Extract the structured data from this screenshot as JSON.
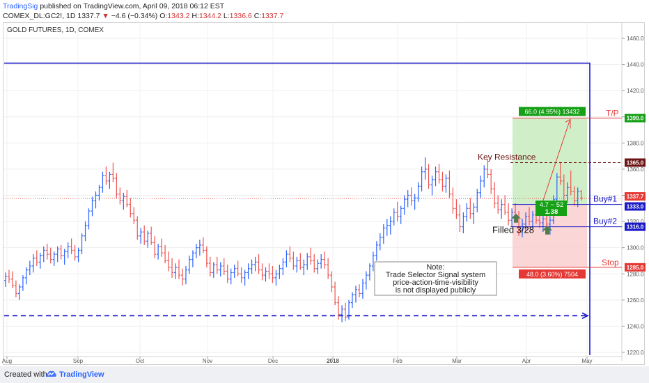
{
  "header": {
    "author": "TradingSig",
    "published_text": "published on TradingView.com, April 09, 2018 06:12 EST",
    "symbol": "COMEX_DL:GC2!, 1D",
    "last_price": "1337.7",
    "change_arrow": "▼",
    "change_text": "−4.6 (−0.34%)",
    "o_label": "O:",
    "o_value": "1343.2",
    "h_label": "H:",
    "h_value": "1344.2",
    "l_label": "L:",
    "l_value": "1336.6",
    "c_label": "C:",
    "c_value": "1337.7"
  },
  "footer": {
    "created_with": "Created with",
    "brand": "TradingView"
  },
  "colors": {
    "up_bar": "#2962ff",
    "down_bar": "#ef5350",
    "navy": "#1a1ac8",
    "green_zone": "#c8ecc0",
    "red_zone": "#f9cfcf",
    "green_label": "#16a016",
    "red_label": "#e53935",
    "dark_red": "#6d1414",
    "price_line": "#e53935"
  },
  "chart_data": {
    "type": "ohlc",
    "title": "GOLD FUTURES, 1D, COMEX",
    "ylim": [
      1216,
      1470
    ],
    "y_ticks": [
      "1220.0",
      "1240.0",
      "1260.0",
      "1280.0",
      "1300.0",
      "1320.0",
      "1340.0",
      "1360.0",
      "1380.0",
      "1400.0",
      "1420.0",
      "1440.0",
      "1460.0"
    ],
    "x_ticks": [
      "Aug",
      "Sep",
      "Oct",
      "Nov",
      "Dec",
      "2018",
      "Feb",
      "Mar",
      "Apr",
      "May"
    ],
    "series": [
      {
        "values": [
          [
            1275,
            1281,
            1270,
            1278
          ],
          [
            1278,
            1283,
            1273,
            1276
          ],
          [
            1276,
            1282,
            1269,
            1271
          ],
          [
            1271,
            1275,
            1262,
            1265
          ],
          [
            1265,
            1272,
            1260,
            1270
          ],
          [
            1270,
            1279,
            1267,
            1277
          ],
          [
            1277,
            1285,
            1272,
            1283
          ],
          [
            1283,
            1290,
            1279,
            1286
          ],
          [
            1286,
            1295,
            1281,
            1292
          ],
          [
            1292,
            1298,
            1286,
            1289
          ],
          [
            1289,
            1296,
            1284,
            1294
          ],
          [
            1294,
            1301,
            1289,
            1298
          ],
          [
            1298,
            1303,
            1291,
            1295
          ],
          [
            1295,
            1300,
            1288,
            1291
          ],
          [
            1291,
            1297,
            1286,
            1295
          ],
          [
            1295,
            1301,
            1289,
            1299
          ],
          [
            1299,
            1302,
            1291,
            1294
          ],
          [
            1294,
            1299,
            1287,
            1297
          ],
          [
            1297,
            1304,
            1292,
            1301
          ],
          [
            1301,
            1307,
            1295,
            1298
          ],
          [
            1298,
            1302,
            1290,
            1293
          ],
          [
            1293,
            1300,
            1289,
            1298
          ],
          [
            1298,
            1311,
            1295,
            1309
          ],
          [
            1309,
            1320,
            1305,
            1317
          ],
          [
            1317,
            1330,
            1314,
            1328
          ],
          [
            1328,
            1339,
            1324,
            1336
          ],
          [
            1336,
            1343,
            1330,
            1340
          ],
          [
            1340,
            1348,
            1336,
            1346
          ],
          [
            1346,
            1358,
            1342,
            1355
          ],
          [
            1355,
            1362,
            1348,
            1351
          ],
          [
            1351,
            1358,
            1345,
            1356
          ],
          [
            1356,
            1365,
            1350,
            1353
          ],
          [
            1353,
            1357,
            1338,
            1341
          ],
          [
            1341,
            1346,
            1333,
            1336
          ],
          [
            1336,
            1342,
            1329,
            1339
          ],
          [
            1339,
            1344,
            1331,
            1333
          ],
          [
            1333,
            1338,
            1323,
            1326
          ],
          [
            1326,
            1331,
            1318,
            1321
          ],
          [
            1321,
            1324,
            1306,
            1309
          ],
          [
            1309,
            1315,
            1303,
            1312
          ],
          [
            1312,
            1317,
            1302,
            1305
          ],
          [
            1305,
            1313,
            1300,
            1311
          ],
          [
            1311,
            1316,
            1302,
            1304
          ],
          [
            1304,
            1309,
            1292,
            1295
          ],
          [
            1295,
            1303,
            1291,
            1301
          ],
          [
            1301,
            1307,
            1293,
            1296
          ],
          [
            1296,
            1302,
            1288,
            1290
          ],
          [
            1290,
            1297,
            1282,
            1285
          ],
          [
            1285,
            1292,
            1277,
            1281
          ],
          [
            1281,
            1288,
            1276,
            1285
          ],
          [
            1285,
            1291,
            1276,
            1279
          ],
          [
            1279,
            1284,
            1271,
            1276
          ],
          [
            1276,
            1286,
            1272,
            1283
          ],
          [
            1283,
            1294,
            1280,
            1291
          ],
          [
            1291,
            1298,
            1285,
            1296
          ],
          [
            1296,
            1303,
            1292,
            1300
          ],
          [
            1300,
            1306,
            1294,
            1302
          ],
          [
            1302,
            1308,
            1296,
            1298
          ],
          [
            1298,
            1301,
            1285,
            1288
          ],
          [
            1288,
            1293,
            1278,
            1281
          ],
          [
            1281,
            1289,
            1277,
            1287
          ],
          [
            1287,
            1293,
            1280,
            1283
          ],
          [
            1283,
            1289,
            1278,
            1286
          ],
          [
            1286,
            1292,
            1279,
            1282
          ],
          [
            1282,
            1287,
            1273,
            1276
          ],
          [
            1276,
            1284,
            1272,
            1281
          ],
          [
            1281,
            1287,
            1277,
            1284
          ],
          [
            1284,
            1290,
            1278,
            1280
          ],
          [
            1280,
            1285,
            1273,
            1277
          ],
          [
            1277,
            1283,
            1271,
            1281
          ],
          [
            1281,
            1288,
            1276,
            1284
          ],
          [
            1284,
            1291,
            1280,
            1287
          ],
          [
            1287,
            1293,
            1282,
            1289
          ],
          [
            1289,
            1295,
            1280,
            1283
          ],
          [
            1283,
            1288,
            1275,
            1279
          ],
          [
            1279,
            1285,
            1274,
            1282
          ],
          [
            1282,
            1288,
            1276,
            1280
          ],
          [
            1280,
            1286,
            1273,
            1277
          ],
          [
            1277,
            1283,
            1271,
            1280
          ],
          [
            1280,
            1287,
            1276,
            1284
          ],
          [
            1284,
            1292,
            1279,
            1289
          ],
          [
            1289,
            1298,
            1285,
            1295
          ],
          [
            1295,
            1301,
            1289,
            1292
          ],
          [
            1292,
            1297,
            1283,
            1286
          ],
          [
            1286,
            1293,
            1281,
            1290
          ],
          [
            1290,
            1296,
            1283,
            1285
          ],
          [
            1285,
            1291,
            1279,
            1287
          ],
          [
            1287,
            1296,
            1283,
            1293
          ],
          [
            1293,
            1300,
            1287,
            1290
          ],
          [
            1290,
            1295,
            1281,
            1284
          ],
          [
            1284,
            1291,
            1280,
            1288
          ],
          [
            1288,
            1295,
            1284,
            1291
          ],
          [
            1291,
            1297,
            1284,
            1287
          ],
          [
            1287,
            1292,
            1276,
            1279
          ],
          [
            1279,
            1282,
            1266,
            1270
          ],
          [
            1270,
            1274,
            1256,
            1258
          ],
          [
            1258,
            1263,
            1245,
            1249
          ],
          [
            1249,
            1256,
            1243,
            1253
          ],
          [
            1253,
            1258,
            1244,
            1247
          ],
          [
            1247,
            1260,
            1245,
            1258
          ],
          [
            1258,
            1266,
            1254,
            1264
          ],
          [
            1264,
            1271,
            1258,
            1268
          ],
          [
            1268,
            1272,
            1262,
            1265
          ],
          [
            1265,
            1276,
            1261,
            1273
          ],
          [
            1273,
            1282,
            1268,
            1279
          ],
          [
            1279,
            1288,
            1275,
            1286
          ],
          [
            1286,
            1297,
            1282,
            1294
          ],
          [
            1294,
            1305,
            1290,
            1302
          ],
          [
            1302,
            1311,
            1298,
            1308
          ],
          [
            1308,
            1318,
            1303,
            1315
          ],
          [
            1315,
            1322,
            1309,
            1317
          ],
          [
            1317,
            1324,
            1310,
            1320
          ],
          [
            1320,
            1330,
            1317,
            1327
          ],
          [
            1327,
            1335,
            1320,
            1324
          ],
          [
            1324,
            1332,
            1318,
            1330
          ],
          [
            1330,
            1340,
            1325,
            1337
          ],
          [
            1337,
            1344,
            1331,
            1340
          ],
          [
            1340,
            1346,
            1332,
            1336
          ],
          [
            1336,
            1341,
            1329,
            1338
          ],
          [
            1338,
            1350,
            1335,
            1347
          ],
          [
            1347,
            1362,
            1343,
            1358
          ],
          [
            1358,
            1369,
            1352,
            1360
          ],
          [
            1360,
            1364,
            1345,
            1348
          ],
          [
            1348,
            1355,
            1340,
            1352
          ],
          [
            1352,
            1362,
            1347,
            1358
          ],
          [
            1358,
            1364,
            1349,
            1352
          ],
          [
            1352,
            1358,
            1343,
            1347
          ],
          [
            1347,
            1356,
            1342,
            1353
          ],
          [
            1353,
            1359,
            1338,
            1341
          ],
          [
            1341,
            1346,
            1326,
            1330
          ],
          [
            1330,
            1337,
            1322,
            1325
          ],
          [
            1325,
            1333,
            1312,
            1316
          ],
          [
            1316,
            1327,
            1311,
            1324
          ],
          [
            1324,
            1334,
            1320,
            1330
          ],
          [
            1330,
            1338,
            1322,
            1326
          ],
          [
            1326,
            1334,
            1318,
            1331
          ],
          [
            1331,
            1345,
            1327,
            1342
          ],
          [
            1342,
            1355,
            1338,
            1351
          ],
          [
            1351,
            1363,
            1346,
            1360
          ],
          [
            1360,
            1368,
            1353,
            1356
          ],
          [
            1356,
            1360,
            1341,
            1345
          ],
          [
            1345,
            1350,
            1330,
            1334
          ],
          [
            1334,
            1340,
            1326,
            1329
          ],
          [
            1329,
            1337,
            1322,
            1333
          ],
          [
            1333,
            1340,
            1325,
            1327
          ],
          [
            1327,
            1334,
            1317,
            1321
          ],
          [
            1321,
            1330,
            1316,
            1327
          ],
          [
            1327,
            1334,
            1320,
            1323
          ],
          [
            1323,
            1328,
            1309,
            1313
          ],
          [
            1313,
            1322,
            1308,
            1318
          ],
          [
            1318,
            1327,
            1313,
            1324
          ],
          [
            1324,
            1331,
            1317,
            1320
          ],
          [
            1320,
            1328,
            1315,
            1325
          ],
          [
            1325,
            1332,
            1318,
            1321
          ],
          [
            1321,
            1327,
            1315,
            1319
          ],
          [
            1319,
            1326,
            1312,
            1322
          ],
          [
            1322,
            1329,
            1316,
            1318
          ],
          [
            1318,
            1324,
            1310,
            1321
          ],
          [
            1321,
            1340,
            1318,
            1337
          ],
          [
            1337,
            1357,
            1333,
            1354
          ],
          [
            1354,
            1365,
            1348,
            1351
          ],
          [
            1351,
            1356,
            1336,
            1340
          ],
          [
            1340,
            1350,
            1334,
            1346
          ],
          [
            1346,
            1359,
            1340,
            1343
          ],
          [
            1343,
            1347,
            1332,
            1336
          ],
          [
            1336,
            1346,
            1331,
            1343
          ],
          [
            1343,
            1344,
            1336,
            1338
          ]
        ]
      }
    ],
    "annotations": {
      "take_profit": {
        "label": "T/P",
        "price": "1399.0",
        "box": "66.0 (4.95%) 13432"
      },
      "key_resistance": {
        "label": "Key Resistance",
        "price": "1365.0"
      },
      "last_price": "1337.7",
      "buy1": {
        "label": "Buy#1",
        "price": "1333.0"
      },
      "buy2": {
        "label": "Buy#2",
        "price": "1316.0"
      },
      "stop": {
        "label": "Stop",
        "price": "1285.0",
        "box": "48.0 (3.60%) 7504"
      },
      "risk_reward": {
        "line1": "4.7 ~ 52",
        "line2": "1.38"
      },
      "filled": "Filled 3/28",
      "note": [
        "Note:",
        "Trade Selector Signal system",
        "price-action-time-visibility",
        "is not displayed publicly"
      ],
      "rectangle": {
        "top": 1441,
        "bottom": 1220
      },
      "support_line": 1248
    }
  }
}
